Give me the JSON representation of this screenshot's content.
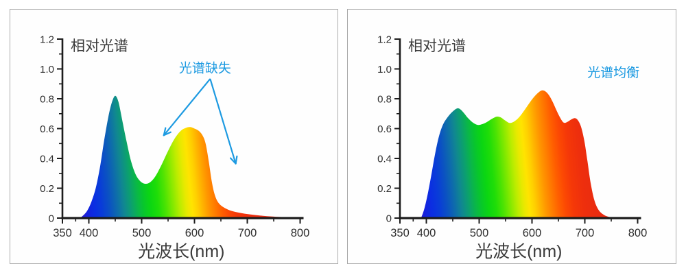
{
  "colors": {
    "background": "#ffffff",
    "panel_background": "#fefefe",
    "panel_border": "#a9a9a9",
    "axis": "#1c1c1c",
    "tick_text": "#2e2e2e",
    "title_text": "#3a3a3a",
    "accent": "#1d9ae1"
  },
  "axes": {
    "x": {
      "min": 350,
      "max": 800,
      "major_ticks": [
        350,
        400,
        500,
        600,
        700,
        800
      ],
      "tick_labels": [
        "350",
        "400",
        "500",
        "600",
        "700",
        "800"
      ],
      "minor_ticks": [
        375,
        450,
        550,
        650,
        750
      ]
    },
    "y": {
      "min": 0,
      "max": 1.2,
      "major_ticks": [
        0,
        0.2,
        0.4,
        0.6,
        0.8,
        1.0,
        1.2
      ],
      "tick_labels": [
        "0",
        "0.2",
        "0.4",
        "0.6",
        "0.8",
        "1.0",
        "1.2"
      ],
      "minor_ticks": [
        0.1,
        0.3,
        0.5,
        0.7,
        0.9,
        1.1
      ]
    }
  },
  "spectrum_gradient_stops": [
    {
      "nm": 383,
      "color": "#2f17cf"
    },
    {
      "nm": 398,
      "color": "#1522dd"
    },
    {
      "nm": 412,
      "color": "#0b2ee2"
    },
    {
      "nm": 426,
      "color": "#093cd8"
    },
    {
      "nm": 441,
      "color": "#0b52c2"
    },
    {
      "nm": 455,
      "color": "#0e6cab"
    },
    {
      "nm": 468,
      "color": "#108791"
    },
    {
      "nm": 481,
      "color": "#0c9f70"
    },
    {
      "nm": 493,
      "color": "#0ab54b"
    },
    {
      "nm": 505,
      "color": "#08c72b"
    },
    {
      "nm": 518,
      "color": "#0bd612"
    },
    {
      "nm": 532,
      "color": "#1fdd08"
    },
    {
      "nm": 546,
      "color": "#4ce303"
    },
    {
      "nm": 560,
      "color": "#85e900"
    },
    {
      "nm": 573,
      "color": "#bcec00"
    },
    {
      "nm": 585,
      "color": "#e8e900"
    },
    {
      "nm": 595,
      "color": "#ffe400"
    },
    {
      "nm": 605,
      "color": "#ffd000"
    },
    {
      "nm": 615,
      "color": "#ffb400"
    },
    {
      "nm": 626,
      "color": "#ff9600"
    },
    {
      "nm": 638,
      "color": "#ff7b00"
    },
    {
      "nm": 650,
      "color": "#ff6000"
    },
    {
      "nm": 663,
      "color": "#fc4903"
    },
    {
      "nm": 678,
      "color": "#f53808"
    },
    {
      "nm": 698,
      "color": "#ee2f0d"
    },
    {
      "nm": 725,
      "color": "#e92b10"
    },
    {
      "nm": 800,
      "color": "#e52a11"
    }
  ],
  "chart_data": [
    {
      "type": "area",
      "title": "相对光谱",
      "xlabel": "光波长(nm)",
      "xlim": [
        350,
        800
      ],
      "ylim": [
        0,
        1.2
      ],
      "grid": false,
      "annotation": {
        "text": "光谱缺失",
        "x": 620,
        "y": 1.01
      },
      "arrows": [
        {
          "x1": 629,
          "y1": 0.93,
          "x2": 542,
          "y2": 0.555
        },
        {
          "x1": 630,
          "y1": 0.93,
          "x2": 678,
          "y2": 0.365
        }
      ],
      "x": [
        383,
        390,
        397,
        405,
        413,
        421,
        429,
        437,
        444,
        450,
        456,
        463,
        471,
        480,
        489,
        498,
        507,
        516,
        526,
        538,
        550,
        562,
        574,
        584,
        592,
        600,
        608,
        615,
        621,
        627,
        633,
        639,
        646,
        655,
        667,
        682,
        700,
        722,
        748,
        775,
        800
      ],
      "y": [
        0.0,
        0.02,
        0.05,
        0.11,
        0.2,
        0.34,
        0.52,
        0.68,
        0.78,
        0.82,
        0.78,
        0.66,
        0.52,
        0.38,
        0.29,
        0.245,
        0.23,
        0.24,
        0.28,
        0.36,
        0.45,
        0.53,
        0.585,
        0.605,
        0.61,
        0.6,
        0.585,
        0.555,
        0.5,
        0.38,
        0.24,
        0.15,
        0.1,
        0.072,
        0.052,
        0.038,
        0.027,
        0.018,
        0.01,
        0.005,
        0.002
      ]
    },
    {
      "type": "area",
      "title": "相对光谱",
      "xlabel": "光波长(nm)",
      "xlim": [
        350,
        800
      ],
      "ylim": [
        0,
        1.2
      ],
      "grid": false,
      "annotation": {
        "text": "光谱均衡",
        "x": 754,
        "y": 0.98
      },
      "arrows": [],
      "x": [
        390,
        396,
        402,
        409,
        416,
        424,
        432,
        441,
        450,
        458,
        464,
        471,
        479,
        488,
        497,
        506,
        515,
        524,
        533,
        541,
        549,
        557,
        565,
        574,
        583,
        592,
        601,
        610,
        618,
        625,
        632,
        639,
        646,
        653,
        660,
        667,
        674,
        681,
        687,
        693,
        699,
        705,
        711,
        718,
        726,
        736,
        748,
        760
      ],
      "y": [
        0.0,
        0.06,
        0.15,
        0.28,
        0.42,
        0.55,
        0.63,
        0.68,
        0.715,
        0.735,
        0.73,
        0.705,
        0.67,
        0.64,
        0.625,
        0.63,
        0.645,
        0.665,
        0.68,
        0.675,
        0.655,
        0.638,
        0.645,
        0.67,
        0.71,
        0.755,
        0.8,
        0.835,
        0.855,
        0.85,
        0.825,
        0.78,
        0.725,
        0.675,
        0.64,
        0.645,
        0.66,
        0.67,
        0.655,
        0.61,
        0.52,
        0.38,
        0.235,
        0.12,
        0.055,
        0.022,
        0.006,
        0.0
      ]
    }
  ]
}
